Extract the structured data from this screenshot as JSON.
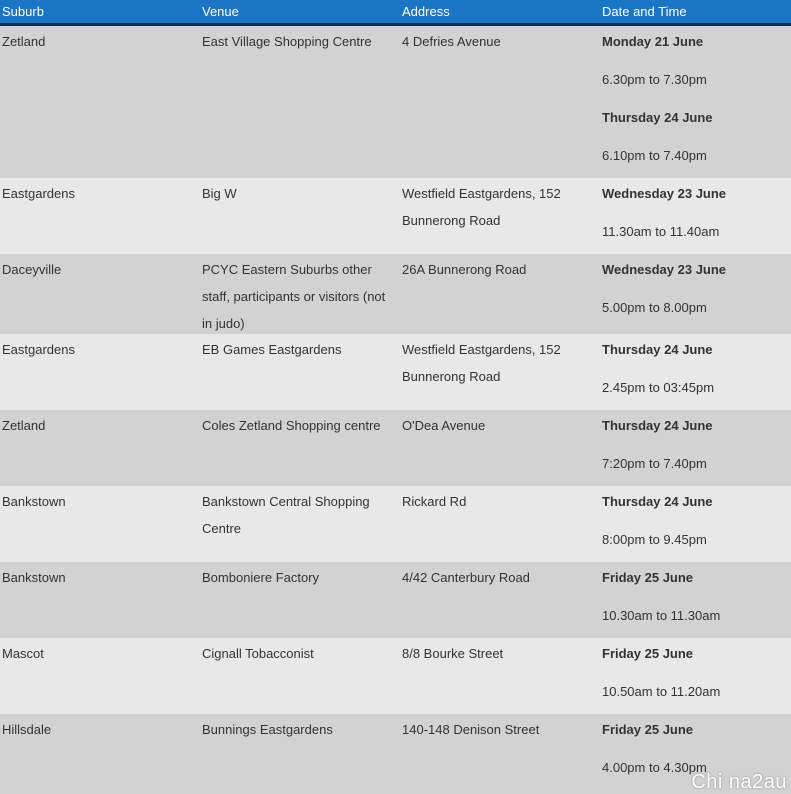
{
  "columns": [
    "Suburb",
    "Venue",
    "Address",
    "Date and Time"
  ],
  "rows": [
    {
      "suburb": "Zetland",
      "venue": "East Village Shopping Centre",
      "address": "4 Defries Avenue",
      "slots": [
        {
          "day": "Monday 21 June",
          "time": "6.30pm to 7.30pm"
        },
        {
          "day": "Thursday 24 June",
          "time": "6.10pm to 7.40pm"
        }
      ]
    },
    {
      "suburb": "Eastgardens",
      "venue": "Big W",
      "address": "Westfield Eastgardens, 152 Bunnerong Road",
      "slots": [
        {
          "day": "Wednesday 23 June",
          "time": "11.30am to 11.40am"
        }
      ]
    },
    {
      "suburb": "Daceyville",
      "venue": "PCYC Eastern Suburbs other staff, participants or visitors (not in judo)",
      "address": "26A Bunnerong Road",
      "slots": [
        {
          "day": "Wednesday 23 June",
          "time": "5.00pm to 8.00pm"
        }
      ]
    },
    {
      "suburb": "Eastgardens",
      "venue": "EB Games Eastgardens",
      "address": "Westfield Eastgardens, 152 Bunnerong Road",
      "slots": [
        {
          "day": "Thursday 24 June",
          "time": "2.45pm to 03:45pm"
        }
      ]
    },
    {
      "suburb": "Zetland",
      "venue": "Coles Zetland  Shopping centre",
      "address": "O'Dea Avenue",
      "slots": [
        {
          "day": "Thursday 24 June",
          "time": "7:20pm to 7.40pm"
        }
      ]
    },
    {
      "suburb": "Bankstown",
      "venue": "Bankstown Central Shopping Centre",
      "address": "Rickard Rd",
      "slots": [
        {
          "day": "Thursday 24 June",
          "time": "8:00pm to 9.45pm"
        }
      ]
    },
    {
      "suburb": "Bankstown",
      "venue": "Bomboniere Factory",
      "address": "4/42 Canterbury Road",
      "slots": [
        {
          "day": "Friday 25 June",
          "time": "10.30am to 11.30am"
        }
      ]
    },
    {
      "suburb": "Mascot",
      "venue": "Cignall Tobacconist",
      "address": "8/8 Bourke Street",
      "slots": [
        {
          "day": "Friday 25 June",
          "time": "10.50am to 11.20am"
        }
      ]
    },
    {
      "suburb": "Hillsdale",
      "venue": "Bunnings Eastgardens",
      "address": "140-148 Denison Street",
      "slots": [
        {
          "day": "Friday 25 June",
          "time": "4.00pm to 4.30pm"
        }
      ]
    }
  ],
  "watermark": "Chi na2au",
  "colors": {
    "header_bg": "#1a75c4",
    "row_dark": "#d2d2d2",
    "row_light": "#e8e8e8"
  }
}
